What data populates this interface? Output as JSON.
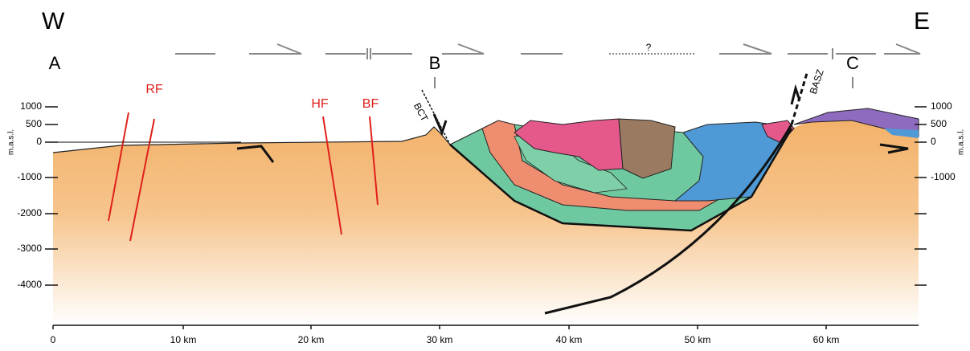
{
  "header": {
    "west": "W",
    "east": "E",
    "query": "?"
  },
  "sections": {
    "a": "A",
    "b": "B",
    "c": "C"
  },
  "faults": {
    "rf": "RF",
    "hf": "HF",
    "bf": "BF",
    "bct": "BCT",
    "basz": "BASZ"
  },
  "elevation": {
    "unit": "m.a.s.l.",
    "left": [
      "1000",
      "500",
      "0",
      "-1000",
      "-2000",
      "-3000",
      "-4000"
    ],
    "right": [
      "1000",
      "500",
      "0",
      "-1000"
    ]
  },
  "distance": [
    "0",
    "10 km",
    "20 km",
    "30 km",
    "40 km",
    "50 km",
    "60 km"
  ]
}
